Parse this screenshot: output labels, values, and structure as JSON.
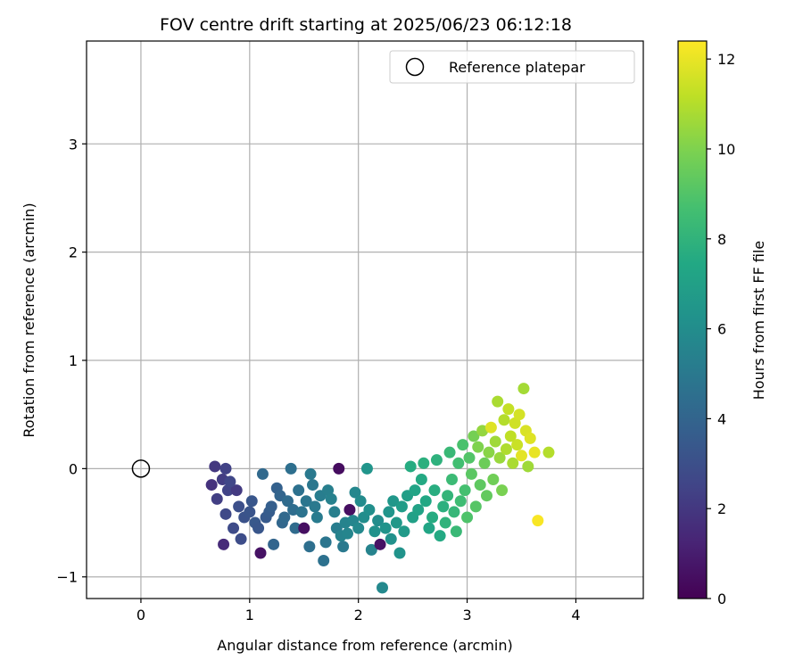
{
  "chart_data": {
    "type": "scatter",
    "title": "FOV centre drift starting at 2025/06/23 06:12:18",
    "xlabel": "Angular distance from reference (arcmin)",
    "ylabel": "Rotation from reference (arcmin)",
    "xlim": [
      -0.5,
      4.62
    ],
    "ylim": [
      -1.2,
      3.95
    ],
    "xticks": [
      0,
      1,
      2,
      3,
      4
    ],
    "yticks": [
      -1,
      0,
      1,
      2,
      3
    ],
    "grid": true,
    "legend": {
      "placement": "top-right",
      "entries": [
        "Reference platepar"
      ]
    },
    "reference_point": {
      "x": 0,
      "y": 0,
      "label": "Reference platepar"
    },
    "colorbar": {
      "label": "Hours from first FF file",
      "colormap": "viridis",
      "range": [
        0,
        12.4
      ],
      "ticks": [
        0,
        2,
        4,
        6,
        8,
        10,
        12
      ]
    },
    "series": [
      {
        "points": [
          [
            0.68,
            0.02,
            2.0
          ],
          [
            0.75,
            -0.1,
            2.2
          ],
          [
            0.65,
            -0.15,
            1.8
          ],
          [
            0.8,
            -0.2,
            2.5
          ],
          [
            0.7,
            -0.28,
            2.3
          ],
          [
            0.78,
            0.0,
            2.4
          ],
          [
            0.88,
            -0.2,
            2.1
          ],
          [
            0.82,
            -0.12,
            2.6
          ],
          [
            0.78,
            -0.42,
            2.7
          ],
          [
            0.9,
            -0.35,
            3.0
          ],
          [
            0.95,
            -0.45,
            3.1
          ],
          [
            0.85,
            -0.55,
            2.8
          ],
          [
            0.92,
            -0.65,
            2.9
          ],
          [
            0.76,
            -0.7,
            1.5
          ],
          [
            1.0,
            -0.4,
            3.2
          ],
          [
            1.02,
            -0.3,
            3.3
          ],
          [
            1.05,
            -0.5,
            3.4
          ],
          [
            1.08,
            -0.55,
            3.3
          ],
          [
            1.1,
            -0.78,
            0.6
          ],
          [
            1.12,
            -0.05,
            4.2
          ],
          [
            1.15,
            -0.45,
            3.5
          ],
          [
            1.18,
            -0.4,
            3.6
          ],
          [
            1.2,
            -0.35,
            3.7
          ],
          [
            1.22,
            -0.7,
            4.0
          ],
          [
            1.25,
            -0.18,
            3.8
          ],
          [
            1.28,
            -0.25,
            4.0
          ],
          [
            1.3,
            -0.5,
            4.1
          ],
          [
            1.32,
            -0.45,
            4.2
          ],
          [
            1.35,
            -0.3,
            4.3
          ],
          [
            1.38,
            0.0,
            4.5
          ],
          [
            1.4,
            -0.38,
            4.4
          ],
          [
            1.42,
            -0.55,
            4.3
          ],
          [
            1.45,
            -0.2,
            4.6
          ],
          [
            1.48,
            -0.4,
            4.7
          ],
          [
            1.5,
            -0.55,
            0.5
          ],
          [
            1.52,
            -0.3,
            4.8
          ],
          [
            1.55,
            -0.72,
            4.5
          ],
          [
            1.56,
            -0.05,
            5.0
          ],
          [
            1.58,
            -0.15,
            4.9
          ],
          [
            1.6,
            -0.35,
            5.0
          ],
          [
            1.62,
            -0.45,
            5.1
          ],
          [
            1.65,
            -0.25,
            5.2
          ],
          [
            1.68,
            -0.85,
            4.6
          ],
          [
            1.7,
            -0.68,
            4.8
          ],
          [
            1.72,
            -0.2,
            5.3
          ],
          [
            1.75,
            -0.28,
            5.4
          ],
          [
            1.78,
            -0.4,
            5.3
          ],
          [
            1.8,
            -0.55,
            5.2
          ],
          [
            1.82,
            0.0,
            0.4
          ],
          [
            1.84,
            -0.62,
            5.5
          ],
          [
            1.86,
            -0.72,
            5.0
          ],
          [
            1.88,
            -0.5,
            5.5
          ],
          [
            1.9,
            -0.6,
            5.6
          ],
          [
            1.92,
            -0.38,
            0.5
          ],
          [
            1.95,
            -0.48,
            5.6
          ],
          [
            1.97,
            -0.22,
            5.7
          ],
          [
            2.0,
            -0.55,
            5.8
          ],
          [
            2.02,
            -0.3,
            5.9
          ],
          [
            2.05,
            -0.45,
            6.0
          ],
          [
            2.08,
            0.0,
            6.4
          ],
          [
            2.1,
            -0.38,
            6.1
          ],
          [
            2.12,
            -0.75,
            5.5
          ],
          [
            2.15,
            -0.58,
            6.2
          ],
          [
            2.18,
            -0.48,
            6.0
          ],
          [
            2.2,
            -0.7,
            0.6
          ],
          [
            2.22,
            -1.1,
            5.8
          ],
          [
            2.25,
            -0.55,
            6.3
          ],
          [
            2.28,
            -0.4,
            6.4
          ],
          [
            2.3,
            -0.65,
            6.2
          ],
          [
            2.32,
            -0.3,
            6.5
          ],
          [
            2.35,
            -0.5,
            6.6
          ],
          [
            2.38,
            -0.78,
            6.3
          ],
          [
            2.4,
            -0.35,
            6.8
          ],
          [
            2.42,
            -0.58,
            6.7
          ],
          [
            2.45,
            -0.25,
            6.9
          ],
          [
            2.48,
            0.02,
            7.6
          ],
          [
            2.5,
            -0.45,
            7.0
          ],
          [
            2.52,
            -0.2,
            7.2
          ],
          [
            2.55,
            -0.38,
            7.1
          ],
          [
            2.58,
            -0.1,
            7.5
          ],
          [
            2.6,
            0.05,
            7.8
          ],
          [
            2.62,
            -0.3,
            7.4
          ],
          [
            2.65,
            -0.55,
            7.3
          ],
          [
            2.68,
            -0.45,
            7.6
          ],
          [
            2.7,
            -0.2,
            7.7
          ],
          [
            2.72,
            0.08,
            7.9
          ],
          [
            2.75,
            -0.62,
            7.5
          ],
          [
            2.78,
            -0.35,
            7.8
          ],
          [
            2.8,
            -0.5,
            8.0
          ],
          [
            2.82,
            -0.25,
            8.1
          ],
          [
            2.84,
            0.15,
            8.3
          ],
          [
            2.86,
            -0.1,
            8.4
          ],
          [
            2.88,
            -0.4,
            8.2
          ],
          [
            2.9,
            -0.58,
            8.3
          ],
          [
            2.92,
            0.05,
            8.6
          ],
          [
            2.94,
            -0.3,
            8.5
          ],
          [
            2.96,
            0.22,
            8.8
          ],
          [
            2.98,
            -0.2,
            8.7
          ],
          [
            3.0,
            -0.45,
            8.9
          ],
          [
            3.02,
            0.1,
            9.0
          ],
          [
            3.04,
            -0.05,
            9.2
          ],
          [
            3.06,
            0.3,
            9.8
          ],
          [
            3.08,
            -0.35,
            9.1
          ],
          [
            3.1,
            0.2,
            10.0
          ],
          [
            3.12,
            -0.15,
            9.3
          ],
          [
            3.14,
            0.35,
            10.4
          ],
          [
            3.16,
            0.05,
            9.6
          ],
          [
            3.18,
            -0.25,
            9.4
          ],
          [
            3.2,
            0.15,
            10.2
          ],
          [
            3.22,
            0.38,
            11.8
          ],
          [
            3.24,
            -0.1,
            9.7
          ],
          [
            3.26,
            0.25,
            10.6
          ],
          [
            3.28,
            0.62,
            10.8
          ],
          [
            3.3,
            0.1,
            10.5
          ],
          [
            3.32,
            -0.2,
            9.9
          ],
          [
            3.34,
            0.45,
            11.0
          ],
          [
            3.36,
            0.18,
            10.9
          ],
          [
            3.38,
            0.55,
            11.3
          ],
          [
            3.4,
            0.3,
            11.2
          ],
          [
            3.42,
            0.05,
            10.8
          ],
          [
            3.44,
            0.42,
            11.5
          ],
          [
            3.46,
            0.22,
            11.4
          ],
          [
            3.48,
            0.5,
            11.6
          ],
          [
            3.5,
            0.12,
            11.9
          ],
          [
            3.52,
            0.74,
            10.7
          ],
          [
            3.54,
            0.35,
            11.7
          ],
          [
            3.56,
            0.02,
            10.6
          ],
          [
            3.58,
            0.28,
            11.8
          ],
          [
            3.62,
            0.15,
            12.0
          ],
          [
            3.65,
            -0.48,
            12.3
          ],
          [
            3.75,
            0.15,
            11.0
          ]
        ]
      }
    ]
  }
}
